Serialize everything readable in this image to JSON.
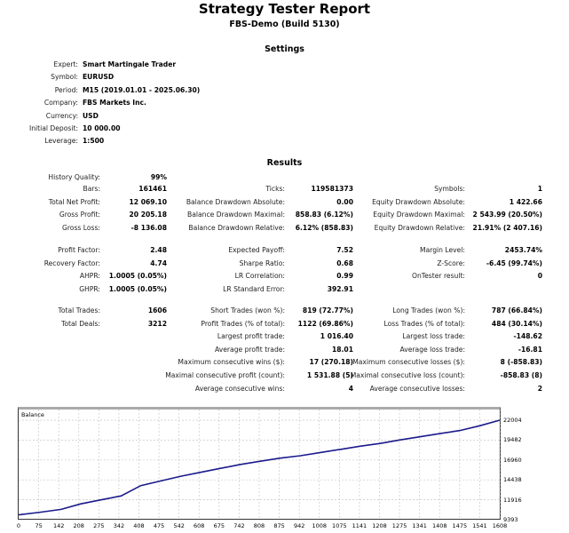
{
  "header": {
    "title": "Strategy Tester Report",
    "subtitle": "FBS-Demo (Build 5130)"
  },
  "settings": {
    "heading": "Settings",
    "items": [
      {
        "label": "Expert:",
        "value": "Smart Martingale Trader"
      },
      {
        "label": "Symbol:",
        "value": "EURUSD"
      },
      {
        "label": "Period:",
        "value": "M15 (2019.01.01 - 2025.06.30)"
      },
      {
        "label": "Company:",
        "value": "FBS Markets Inc."
      },
      {
        "label": "Currency:",
        "value": "USD"
      },
      {
        "label": "Initial Deposit:",
        "value": "10 000.00"
      },
      {
        "label": "Leverage:",
        "value": "1:500"
      }
    ]
  },
  "results": {
    "heading": "Results",
    "history_quality": {
      "label": "History Quality:",
      "value": "99%"
    },
    "block1": [
      [
        {
          "label": "Bars:",
          "value": "161461"
        },
        {
          "label": "Ticks:",
          "value": "119581373"
        },
        {
          "label": "Symbols:",
          "value": "1"
        }
      ],
      [
        {
          "label": "Total Net Profit:",
          "value": "12 069.10"
        },
        {
          "label": "Balance Drawdown Absolute:",
          "value": "0.00"
        },
        {
          "label": "Equity Drawdown Absolute:",
          "value": "1 422.66"
        }
      ],
      [
        {
          "label": "Gross Profit:",
          "value": "20 205.18"
        },
        {
          "label": "Balance Drawdown Maximal:",
          "value": "858.83 (6.12%)"
        },
        {
          "label": "Equity Drawdown Maximal:",
          "value": "2 543.99 (20.50%)"
        }
      ],
      [
        {
          "label": "Gross Loss:",
          "value": "-8 136.08"
        },
        {
          "label": "Balance Drawdown Relative:",
          "value": "6.12% (858.83)"
        },
        {
          "label": "Equity Drawdown Relative:",
          "value": "21.91% (2 407.16)"
        }
      ]
    ],
    "block2": [
      [
        {
          "label": "Profit Factor:",
          "value": "2.48"
        },
        {
          "label": "Expected Payoff:",
          "value": "7.52"
        },
        {
          "label": "Margin Level:",
          "value": "2453.74%"
        }
      ],
      [
        {
          "label": "Recovery Factor:",
          "value": "4.74"
        },
        {
          "label": "Sharpe Ratio:",
          "value": "0.68"
        },
        {
          "label": "Z-Score:",
          "value": "-6.45 (99.74%)"
        }
      ],
      [
        {
          "label": "AHPR:",
          "value": "1.0005 (0.05%)"
        },
        {
          "label": "LR Correlation:",
          "value": "0.99"
        },
        {
          "label": "OnTester result:",
          "value": "0"
        }
      ],
      [
        {
          "label": "GHPR:",
          "value": "1.0005 (0.05%)"
        },
        {
          "label": "LR Standard Error:",
          "value": "392.91"
        },
        null
      ]
    ],
    "block3": [
      [
        {
          "label": "Total Trades:",
          "value": "1606"
        },
        {
          "label": "Short Trades (won %):",
          "value": "819 (72.77%)"
        },
        {
          "label": "Long Trades (won %):",
          "value": "787 (66.84%)"
        }
      ],
      [
        {
          "label": "Total Deals:",
          "value": "3212"
        },
        {
          "label": "Profit Trades (% of total):",
          "value": "1122 (69.86%)"
        },
        {
          "label": "Loss Trades (% of total):",
          "value": "484 (30.14%)"
        }
      ],
      [
        null,
        {
          "label": "Largest profit trade:",
          "value": "1 016.40"
        },
        {
          "label": "Largest loss trade:",
          "value": "-148.62"
        }
      ],
      [
        null,
        {
          "label": "Average profit trade:",
          "value": "18.01"
        },
        {
          "label": "Average loss trade:",
          "value": "-16.81"
        }
      ],
      [
        null,
        {
          "label": "Maximum consecutive wins ($):",
          "value": "17 (270.18)"
        },
        {
          "label": "Maximum consecutive losses ($):",
          "value": "8 (-858.83)"
        }
      ],
      [
        null,
        {
          "label": "Maximal consecutive profit (count):",
          "value": "1 531.88 (5)"
        },
        {
          "label": "Maximal consecutive loss (count):",
          "value": "-858.83 (8)"
        }
      ],
      [
        null,
        {
          "label": "Average consecutive wins:",
          "value": "4"
        },
        {
          "label": "Average consecutive losses:",
          "value": "2"
        }
      ]
    ]
  },
  "chart_data": {
    "type": "line",
    "title": "Balance",
    "xlabel": "",
    "ylabel": "",
    "series": [
      {
        "name": "Balance",
        "color": "#1a1a8c"
      }
    ],
    "x": [
      0,
      75,
      142,
      208,
      275,
      342,
      408,
      475,
      542,
      608,
      675,
      742,
      808,
      875,
      942,
      1008,
      1075,
      1141,
      1208,
      1275,
      1341,
      1408,
      1475,
      1541,
      1608
    ],
    "x_ticks": [
      "0",
      "75",
      "142",
      "208",
      "275",
      "342",
      "408",
      "475",
      "542",
      "608",
      "675",
      "742",
      "808",
      "875",
      "942",
      "1008",
      "1075",
      "1141",
      "1208",
      "1275",
      "1341",
      "1408",
      "1475",
      "1541",
      "1608"
    ],
    "y_ticks": [
      "22004",
      "19482",
      "16960",
      "14438",
      "11916",
      "9393"
    ],
    "ylim": [
      9393,
      22004
    ],
    "values": [
      10000,
      10350,
      10700,
      11400,
      11900,
      12400,
      13700,
      14300,
      14900,
      15400,
      15900,
      16400,
      16800,
      17200,
      17500,
      17900,
      18300,
      18700,
      19050,
      19500,
      19900,
      20300,
      20700,
      21300,
      22000
    ],
    "grid": true,
    "legend": "none"
  }
}
